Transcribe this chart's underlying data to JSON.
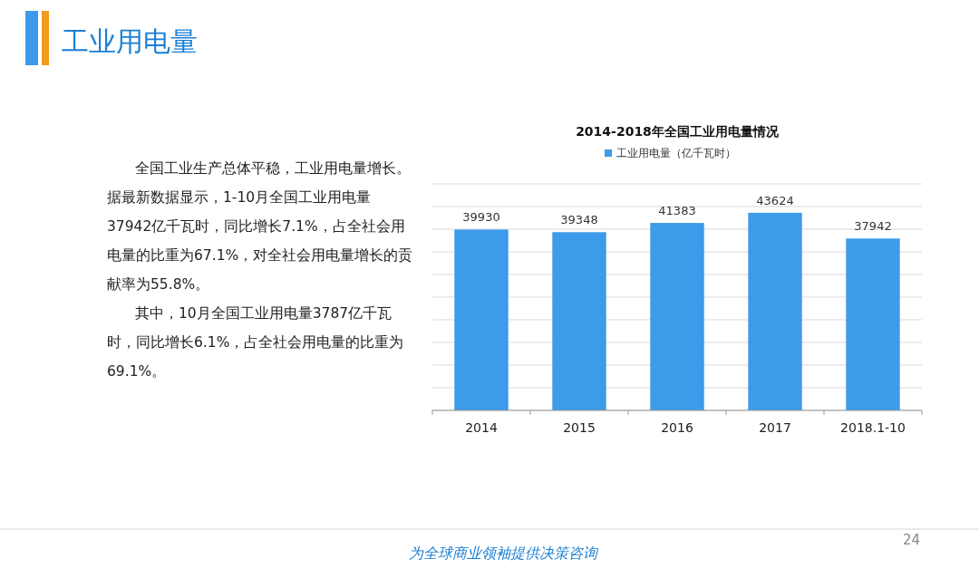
{
  "chart_data": {
    "type": "bar",
    "title": "2014-2018年全国工业用电量情况",
    "categories": [
      "2014",
      "2015",
      "2016",
      "2017",
      "2018.1-10"
    ],
    "series": [
      {
        "name": "工业用电量（亿千瓦时）",
        "color": "#3d9be9",
        "values": [
          39930,
          39348,
          41383,
          43624,
          37942
        ]
      }
    ],
    "ylim": [
      0,
      50000
    ],
    "yticks": [
      {
        "value": 0,
        "label": null
      },
      {
        "value": 5000,
        "label": null
      },
      {
        "value": 10000,
        "label": null
      },
      {
        "value": 15000,
        "label": null
      },
      {
        "value": 20000,
        "label": null
      },
      {
        "value": 25000,
        "label": null
      },
      {
        "value": 30000,
        "label": null
      },
      {
        "value": 35000,
        "label": null
      },
      {
        "value": 40000,
        "label": null
      },
      {
        "value": 45000,
        "label": null
      },
      {
        "value": 50000,
        "label": null
      }
    ],
    "tick_labels": "x",
    "grid": "y",
    "legend": "top",
    "data_labels": true,
    "annotations": [
      "工业用电量",
      "全国工业生产总体平稳，工业用电量增长。据最新数据显示，1-10月全国工业用电量37942亿千瓦时，同比增长7.1%，占全社会用电量的比重为67.1%，对全社会用电量增长的贡献率为55.8%。",
      "其中，10月全国工业用电量3787亿千瓦时，同比增长6.1%，占全社会用电量的比重为69.1%。",
      "为全球商业领袖提供决策咨询",
      "24"
    ]
  }
}
